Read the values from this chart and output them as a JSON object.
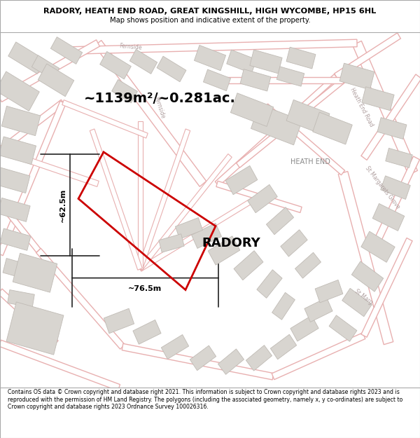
{
  "title_line1": "RADORY, HEATH END ROAD, GREAT KINGSHILL, HIGH WYCOMBE, HP15 6HL",
  "title_line2": "Map shows position and indicative extent of the property.",
  "area_label": "~1139m²/~0.281ac.",
  "width_label": "~76.5m",
  "height_label": "~62.5m",
  "property_name": "RADORY",
  "map_bg": "#f5f3f0",
  "building_face": "#d8d5d0",
  "building_edge": "#c0bbb5",
  "road_fill": "#ffffff",
  "road_edge": "#e8b0b0",
  "plot_color": "#cc0000",
  "plot_lw": 2.0,
  "dim_color": "#222222",
  "label_road_color": "#b0a0a0",
  "label_place_color": "#888888",
  "footer_text": "Contains OS data © Crown copyright and database right 2021. This information is subject to Crown copyright and database rights 2023 and is reproduced with the permission of HM Land Registry. The polygons (including the associated geometry, namely x, y co-ordinates) are subject to Crown copyright and database rights 2023 Ordnance Survey 100026316.",
  "figsize": [
    6.0,
    6.25
  ],
  "dpi": 100
}
